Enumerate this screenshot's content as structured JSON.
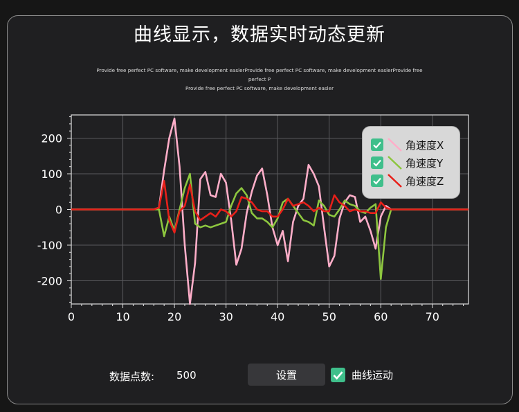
{
  "title": "曲线显示，数据实时动态更新",
  "subtitle_line1": "Provide free perfect PC software, make development easlerProvide free perfect PC software, make development easlerProvide free perfect P",
  "subtitle_line2": "Provide free perfect PC software, make development easler",
  "controls": {
    "points_label": "数据点数:",
    "points_value": "500",
    "settings_button": "设置",
    "motion_checkbox_label": "曲线运动",
    "motion_checked": true
  },
  "colors": {
    "background": "#1f1f21",
    "accent_check": "#3fbf8b",
    "series_x": "#ffaec9",
    "series_y": "#8dc63f",
    "series_z": "#e8201a"
  },
  "chart_data": {
    "type": "line",
    "xlim": [
      0,
      77
    ],
    "ylim": [
      -265,
      265
    ],
    "x_ticks": [
      0,
      10,
      20,
      30,
      40,
      50,
      60,
      70
    ],
    "y_ticks": [
      200,
      100,
      0,
      -100,
      -200
    ],
    "grid": true,
    "legend": "top-right",
    "x": [
      0,
      1,
      2,
      3,
      4,
      5,
      6,
      7,
      8,
      9,
      10,
      11,
      12,
      13,
      14,
      15,
      16,
      17,
      18,
      19,
      20,
      21,
      22,
      23,
      24,
      25,
      26,
      27,
      28,
      29,
      30,
      31,
      32,
      33,
      34,
      35,
      36,
      37,
      38,
      39,
      40,
      41,
      42,
      43,
      44,
      45,
      46,
      47,
      48,
      49,
      50,
      51,
      52,
      53,
      54,
      55,
      56,
      57,
      58,
      59,
      60,
      61,
      62,
      63,
      64,
      65,
      66,
      67,
      68,
      69,
      70,
      71,
      72,
      73,
      74,
      75,
      76,
      77
    ],
    "series": [
      {
        "name": "角速度X",
        "values": [
          0,
          0,
          0,
          0,
          0,
          0,
          0,
          0,
          0,
          0,
          0,
          0,
          0,
          0,
          0,
          0,
          0,
          5,
          110,
          200,
          255,
          120,
          -100,
          -265,
          -150,
          85,
          105,
          40,
          35,
          100,
          75,
          -30,
          -155,
          -110,
          -10,
          50,
          95,
          115,
          40,
          -50,
          -100,
          -60,
          -145,
          -35,
          10,
          30,
          125,
          100,
          65,
          -50,
          -160,
          -130,
          -25,
          20,
          40,
          35,
          -35,
          -20,
          -60,
          -110,
          -20,
          10,
          0,
          0,
          0,
          0,
          0,
          0,
          0,
          0,
          0,
          0,
          0,
          0,
          0,
          0,
          0,
          0
        ]
      },
      {
        "name": "角速度Y",
        "values": [
          0,
          0,
          0,
          0,
          0,
          0,
          0,
          0,
          0,
          0,
          0,
          0,
          0,
          0,
          0,
          0,
          0,
          0,
          -75,
          -20,
          -60,
          0,
          60,
          100,
          -40,
          -50,
          -45,
          -50,
          -45,
          -40,
          -35,
          10,
          45,
          60,
          40,
          -10,
          -25,
          -25,
          -35,
          -50,
          -25,
          20,
          30,
          10,
          -10,
          -30,
          -35,
          -45,
          25,
          10,
          -15,
          -20,
          0,
          25,
          15,
          10,
          -5,
          -10,
          5,
          15,
          -195,
          -50,
          0,
          0,
          0,
          0,
          0,
          0,
          0,
          0,
          0,
          0,
          0,
          0,
          0,
          0,
          0,
          0
        ]
      },
      {
        "name": "角速度Z",
        "values": [
          0,
          0,
          0,
          0,
          0,
          0,
          0,
          0,
          0,
          0,
          0,
          0,
          0,
          0,
          0,
          0,
          0,
          5,
          80,
          -30,
          -65,
          -5,
          10,
          70,
          -5,
          -30,
          -20,
          -10,
          -20,
          0,
          -5,
          -20,
          -5,
          35,
          30,
          20,
          0,
          -5,
          -5,
          -20,
          -20,
          0,
          30,
          10,
          15,
          20,
          10,
          -5,
          5,
          -5,
          -5,
          40,
          20,
          10,
          -5,
          0,
          -5,
          -5,
          -10,
          -10,
          20,
          5,
          0,
          0,
          0,
          0,
          0,
          0,
          0,
          0,
          0,
          0,
          0,
          0,
          0,
          0,
          0,
          0
        ]
      }
    ]
  }
}
